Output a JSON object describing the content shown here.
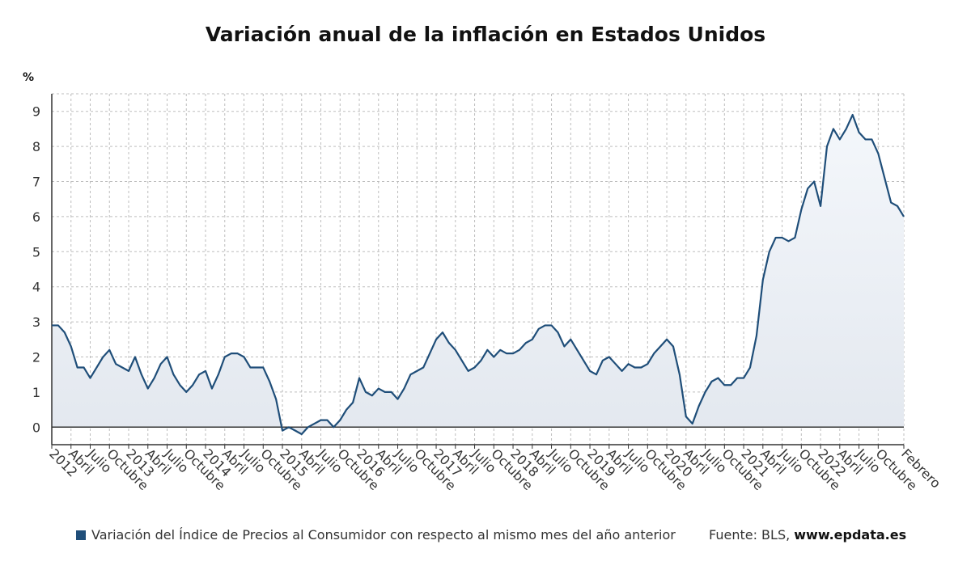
{
  "chart_data": {
    "type": "area",
    "title": "Variación anual de la inflación en Estados Unidos",
    "ylabel": "%",
    "ylim": [
      -0.5,
      9.5
    ],
    "yticks": [
      0,
      1,
      2,
      3,
      4,
      5,
      6,
      7,
      8,
      9
    ],
    "grid": true,
    "series": [
      {
        "name": "Variación del Índice de Precios al Consumidor con respecto al mismo mes del año anterior",
        "color": "#1f4e79",
        "start": "2012-01",
        "values": [
          2.9,
          2.9,
          2.7,
          2.3,
          1.7,
          1.7,
          1.4,
          1.7,
          2.0,
          2.2,
          1.8,
          1.7,
          1.6,
          2.0,
          1.5,
          1.1,
          1.4,
          1.8,
          2.0,
          1.5,
          1.2,
          1.0,
          1.2,
          1.5,
          1.6,
          1.1,
          1.5,
          2.0,
          2.1,
          2.1,
          2.0,
          1.7,
          1.7,
          1.7,
          1.3,
          0.8,
          -0.1,
          0.0,
          -0.1,
          -0.2,
          0.0,
          0.1,
          0.2,
          0.2,
          0.0,
          0.2,
          0.5,
          0.7,
          1.4,
          1.0,
          0.9,
          1.1,
          1.0,
          1.0,
          0.8,
          1.1,
          1.5,
          1.6,
          1.7,
          2.1,
          2.5,
          2.7,
          2.4,
          2.2,
          1.9,
          1.6,
          1.7,
          1.9,
          2.2,
          2.0,
          2.2,
          2.1,
          2.1,
          2.2,
          2.4,
          2.5,
          2.8,
          2.9,
          2.9,
          2.7,
          2.3,
          2.5,
          2.2,
          1.9,
          1.6,
          1.5,
          1.9,
          2.0,
          1.8,
          1.6,
          1.8,
          1.7,
          1.7,
          1.8,
          2.1,
          2.3,
          2.5,
          2.3,
          1.5,
          0.3,
          0.1,
          0.6,
          1.0,
          1.3,
          1.4,
          1.2,
          1.2,
          1.4,
          1.4,
          1.7,
          2.6,
          4.2,
          5.0,
          5.4,
          5.4,
          5.3,
          5.4,
          6.2,
          6.8,
          7.0,
          6.3,
          8.0,
          8.5,
          8.2,
          8.5,
          8.9,
          8.4,
          8.2,
          8.2,
          7.8,
          7.1,
          6.4,
          6.3,
          6.0
        ]
      }
    ],
    "x_tick_labels": [
      "2012",
      "Abril",
      "Julio",
      "Octubre",
      "2013",
      "Abril",
      "Julio",
      "Octubre",
      "2014",
      "Abril",
      "Julio",
      "Octubre",
      "2015",
      "Abril",
      "Julio",
      "Octubre",
      "2016",
      "Abril",
      "Julio",
      "Octubre",
      "2017",
      "Abril",
      "Julio",
      "Octubre",
      "2018",
      "Abril",
      "Julio",
      "Octubre",
      "2019",
      "Abril",
      "Julio",
      "Octubre",
      "2020",
      "Abril",
      "Julio",
      "Octubre",
      "2021",
      "Abril",
      "Julio",
      "Octubre",
      "2022",
      "Abril",
      "Julio",
      "Octubre",
      "Febrero"
    ]
  },
  "legend": {
    "label": "Variación del Índice de Precios al Consumidor con respecto al mismo mes del año anterior",
    "color": "#1f4e79"
  },
  "source": {
    "prefix": "Fuente: BLS, ",
    "site": "www.epdata.es"
  }
}
